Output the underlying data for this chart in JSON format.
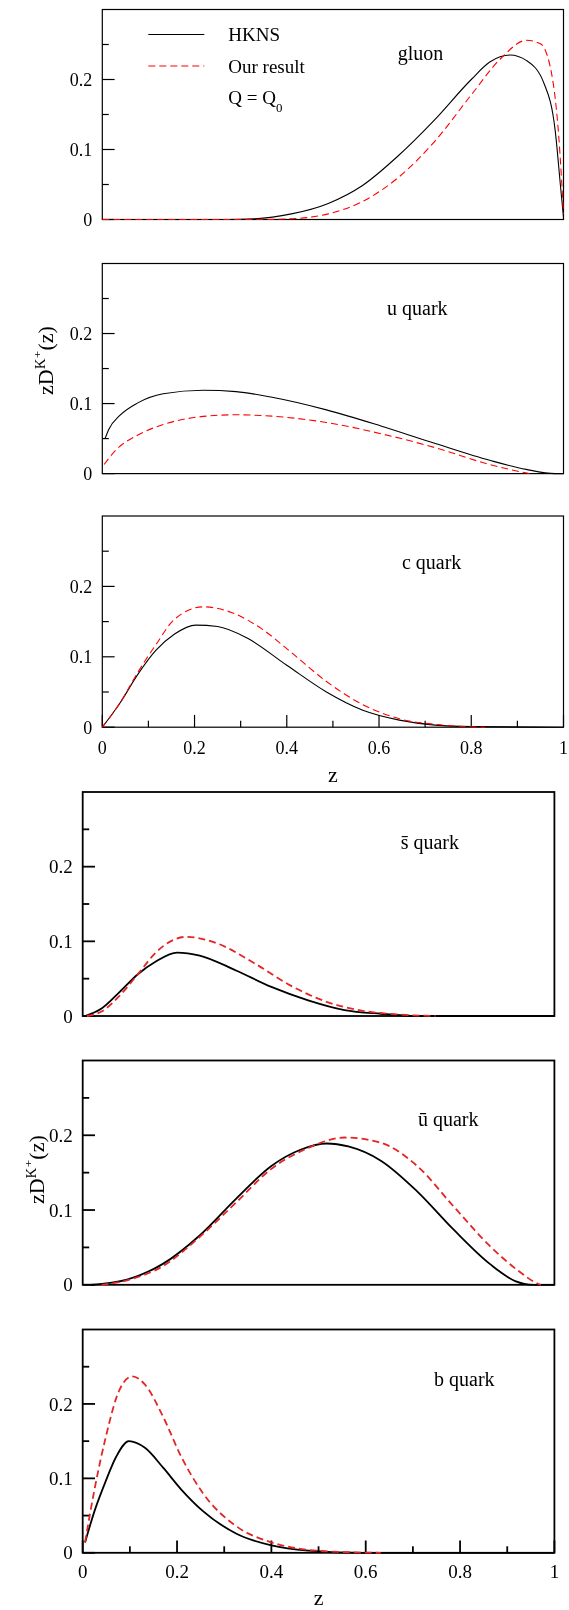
{
  "chart_data": [
    {
      "type": "line",
      "xlim": [
        0,
        1
      ],
      "ylim": [
        0,
        0.3
      ],
      "yticks": [
        0,
        {
          "value": 0.05,
          "label": null
        },
        0.1,
        {
          "value": 0.15,
          "label": null
        },
        0.2,
        {
          "value": 0.25,
          "label": null
        }
      ],
      "tick_labels": "y",
      "legend": "top left",
      "annotations": [
        "gluon",
        "Q = Q$_{0}$"
      ],
      "series": [
        {
          "name": "HKNS",
          "color": "#000000",
          "line_style": "solid",
          "x": [
            0,
            0.1,
            0.2,
            0.27,
            0.33,
            0.41,
            0.49,
            0.565,
            0.64,
            0.72,
            0.8,
            0.84,
            0.884,
            0.92,
            0.958,
            0.982,
            0.994,
            1
          ],
          "values": [
            0,
            0,
            0,
            0,
            0.001,
            0.008,
            0.023,
            0.049,
            0.09,
            0.142,
            0.2,
            0.225,
            0.235,
            0.227,
            0.194,
            0.127,
            0.044,
            0.003
          ]
        },
        {
          "name": "Our result",
          "color": "#ff0000",
          "line_style": "dashed",
          "x": [
            0,
            0.2,
            0.35,
            0.41,
            0.49,
            0.565,
            0.64,
            0.72,
            0.8,
            0.864,
            0.92,
            0.95,
            0.974,
            0.99,
            1
          ],
          "values": [
            0,
            0,
            0,
            0.001,
            0.008,
            0.026,
            0.059,
            0.111,
            0.178,
            0.23,
            0.256,
            0.251,
            0.209,
            0.116,
            0.008
          ]
        }
      ]
    },
    {
      "type": "line",
      "xlim": [
        0,
        1
      ],
      "ylim": [
        0,
        0.3
      ],
      "yticks": [
        0,
        {
          "value": 0.05,
          "label": null
        },
        0.1,
        {
          "value": 0.15,
          "label": null
        },
        0.2,
        {
          "value": 0.25,
          "label": null
        }
      ],
      "tick_labels": "y",
      "ylabel": "zD$^{K⁺}$(z)",
      "annotations": [
        "u quark"
      ],
      "series": [
        {
          "color": "#000000",
          "line_style": "solid",
          "x": [
            0.006,
            0.014,
            0.038,
            0.077,
            0.132,
            0.219,
            0.29,
            0.368,
            0.486,
            0.604,
            0.722,
            0.84,
            0.919,
            0.982,
            1
          ],
          "values": [
            0.05,
            0.063,
            0.083,
            0.101,
            0.114,
            0.119,
            0.117,
            0.109,
            0.091,
            0.068,
            0.043,
            0.019,
            0.006,
            0,
            0
          ]
        },
        {
          "color": "#ff0000",
          "line_style": "dashed",
          "x": [
            0.004,
            0.03,
            0.077,
            0.132,
            0.21,
            0.29,
            0.368,
            0.486,
            0.604,
            0.722,
            0.84,
            0.911,
            0.927
          ],
          "values": [
            0.013,
            0.034,
            0.055,
            0.07,
            0.081,
            0.084,
            0.082,
            0.073,
            0.057,
            0.037,
            0.013,
            0.002,
            0
          ]
        }
      ]
    },
    {
      "type": "line",
      "xlim": [
        0,
        1
      ],
      "ylim": [
        0,
        0.3
      ],
      "xticks": [
        0,
        {
          "value": 0.1,
          "label": null
        },
        0.2,
        {
          "value": 0.3,
          "label": null
        },
        0.4,
        {
          "value": 0.5,
          "label": null
        },
        0.6,
        {
          "value": 0.7,
          "label": null
        },
        0.8,
        {
          "value": 0.9,
          "label": null
        },
        1
      ],
      "yticks": [
        0,
        {
          "value": 0.05,
          "label": null
        },
        0.1,
        {
          "value": 0.15,
          "label": null
        },
        0.2,
        {
          "value": 0.25,
          "label": null
        }
      ],
      "xlabel": "z",
      "annotations": [
        "c quark"
      ],
      "series": [
        {
          "color": "#000000",
          "line_style": "solid",
          "x": [
            0,
            0.038,
            0.077,
            0.116,
            0.156,
            0.203,
            0.25,
            0.313,
            0.4,
            0.486,
            0.565,
            0.644,
            0.722,
            0.8,
            1
          ],
          "values": [
            0,
            0.034,
            0.075,
            0.109,
            0.132,
            0.145,
            0.143,
            0.127,
            0.088,
            0.05,
            0.024,
            0.01,
            0.003,
            0.001,
            0
          ]
        },
        {
          "color": "#ff0000",
          "line_style": "dashed",
          "x": [
            0,
            0.038,
            0.077,
            0.116,
            0.156,
            0.219,
            0.28,
            0.345,
            0.41,
            0.486,
            0.565,
            0.644,
            0.722,
            0.83
          ],
          "values": [
            0,
            0.034,
            0.078,
            0.117,
            0.153,
            0.171,
            0.163,
            0.14,
            0.106,
            0.065,
            0.032,
            0.012,
            0.004,
            0
          ]
        }
      ]
    },
    {
      "type": "line",
      "xlim": [
        0,
        1
      ],
      "ylim": [
        0,
        0.3
      ],
      "yticks": [
        0,
        {
          "value": 0.05,
          "label": null
        },
        0.1,
        {
          "value": 0.15,
          "label": null
        },
        0.2,
        {
          "value": 0.25,
          "label": null
        }
      ],
      "tick_labels": "y",
      "annotations": [
        "s̄ quark"
      ],
      "series": [
        {
          "color": "#000000",
          "line_style": "solid",
          "x": [
            0.005,
            0.04,
            0.078,
            0.117,
            0.155,
            0.2,
            0.248,
            0.325,
            0.4,
            0.478,
            0.555,
            0.632,
            0.71,
            1
          ],
          "values": [
            0,
            0.01,
            0.032,
            0.056,
            0.073,
            0.085,
            0.081,
            0.061,
            0.039,
            0.021,
            0.008,
            0.003,
            0,
            0
          ]
        },
        {
          "color": "#e42526",
          "line_style": "dashed",
          "x": [
            0.009,
            0.04,
            0.078,
            0.117,
            0.155,
            0.22,
            0.286,
            0.363,
            0.44,
            0.517,
            0.594,
            0.67,
            0.748
          ],
          "values": [
            0,
            0.006,
            0.027,
            0.056,
            0.085,
            0.106,
            0.097,
            0.071,
            0.041,
            0.019,
            0.007,
            0.002,
            0
          ]
        }
      ]
    },
    {
      "type": "line",
      "xlim": [
        0,
        1
      ],
      "ylim": [
        0,
        0.3
      ],
      "yticks": [
        0,
        {
          "value": 0.05,
          "label": null
        },
        0.1,
        {
          "value": 0.15,
          "label": null
        },
        0.2,
        {
          "value": 0.25,
          "label": null
        }
      ],
      "tick_labels": "y",
      "ylabel": "zD$^{K⁺}$(z)",
      "annotations": [
        "ū quark"
      ],
      "series": [
        {
          "color": "#000000",
          "line_style": "solid",
          "x": [
            0.017,
            0.094,
            0.17,
            0.248,
            0.325,
            0.4,
            0.463,
            0.517,
            0.563,
            0.632,
            0.709,
            0.786,
            0.863,
            0.917,
            0.955,
            1
          ],
          "values": [
            0,
            0.007,
            0.028,
            0.066,
            0.115,
            0.159,
            0.181,
            0.189,
            0.185,
            0.166,
            0.125,
            0.074,
            0.028,
            0.005,
            0,
            0
          ]
        },
        {
          "color": "#e42526",
          "line_style": "dashed",
          "x": [
            0.04,
            0.094,
            0.17,
            0.248,
            0.325,
            0.4,
            0.478,
            0.555,
            0.632,
            0.709,
            0.786,
            0.863,
            0.925,
            0.963,
            0.971
          ],
          "values": [
            0,
            0.006,
            0.025,
            0.064,
            0.11,
            0.155,
            0.183,
            0.197,
            0.19,
            0.159,
            0.105,
            0.052,
            0.018,
            0.002,
            0
          ]
        }
      ]
    },
    {
      "type": "line",
      "xlim": [
        0,
        1
      ],
      "ylim": [
        0,
        0.3
      ],
      "xticks": [
        0,
        {
          "value": 0.1,
          "label": null
        },
        0.2,
        {
          "value": 0.3,
          "label": null
        },
        0.4,
        {
          "value": 0.5,
          "label": null
        },
        0.6,
        {
          "value": 0.7,
          "label": null
        },
        0.8,
        {
          "value": 0.9,
          "label": null
        },
        1
      ],
      "yticks": [
        0,
        {
          "value": 0.05,
          "label": null
        },
        0.1,
        {
          "value": 0.15,
          "label": null
        },
        0.2,
        {
          "value": 0.25,
          "label": null
        }
      ],
      "xlabel": "z",
      "annotations": [
        "b quark"
      ],
      "series": [
        {
          "color": "#000000",
          "line_style": "solid",
          "x": [
            0.005,
            0.025,
            0.048,
            0.071,
            0.098,
            0.132,
            0.171,
            0.209,
            0.255,
            0.325,
            0.4,
            0.478,
            0.594,
            1
          ],
          "values": [
            0.014,
            0.056,
            0.095,
            0.129,
            0.15,
            0.141,
            0.114,
            0.085,
            0.056,
            0.026,
            0.01,
            0.003,
            0,
            0
          ]
        },
        {
          "color": "#e42526",
          "line_style": "dashed",
          "x": [
            0.005,
            0.025,
            0.048,
            0.078,
            0.105,
            0.132,
            0.171,
            0.209,
            0.255,
            0.325,
            0.4,
            0.478,
            0.555,
            0.632
          ],
          "values": [
            0.014,
            0.085,
            0.153,
            0.219,
            0.237,
            0.226,
            0.182,
            0.129,
            0.08,
            0.036,
            0.014,
            0.004,
            0.001,
            0
          ]
        }
      ]
    }
  ]
}
